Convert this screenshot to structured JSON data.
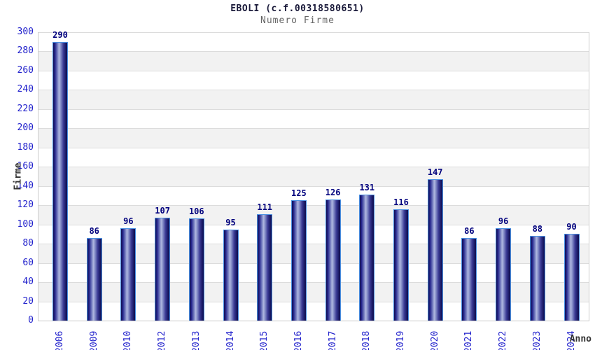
{
  "chart_data": {
    "type": "bar",
    "title": "EBOLI (c.f.00318580651)",
    "subtitle": "Numero Firme",
    "xlabel": "Anno",
    "ylabel": "Firme",
    "categories": [
      "2006",
      "2009",
      "2010",
      "2012",
      "2013",
      "2014",
      "2015",
      "2016",
      "2017",
      "2018",
      "2019",
      "2020",
      "2021",
      "2022",
      "2023",
      "2024"
    ],
    "values": [
      290,
      86,
      96,
      107,
      106,
      95,
      111,
      125,
      126,
      131,
      116,
      147,
      86,
      96,
      88,
      90
    ],
    "ylim": [
      0,
      300
    ],
    "ytick_step": 20,
    "yticks": [
      0,
      20,
      40,
      60,
      80,
      100,
      120,
      140,
      160,
      180,
      200,
      220,
      240,
      260,
      280,
      300
    ],
    "grid": "horizontal-bands-alternating",
    "legend": "none",
    "colors": {
      "bar_dark": "#10104f",
      "bar_mid": "#23238b",
      "bar_light": "#b0b8e0",
      "bar_border": "#4a90e2",
      "axis_tick_blue": "#2222cc",
      "value_label": "#00007d",
      "title_color": "#1a1a3a",
      "subtitle_color": "#666666",
      "axis_title_color": "#333333",
      "band_gray": "#f2f2f2",
      "band_white": "#ffffff",
      "gridline": "#dcdcdc",
      "axis_line": "#cccccc"
    }
  }
}
